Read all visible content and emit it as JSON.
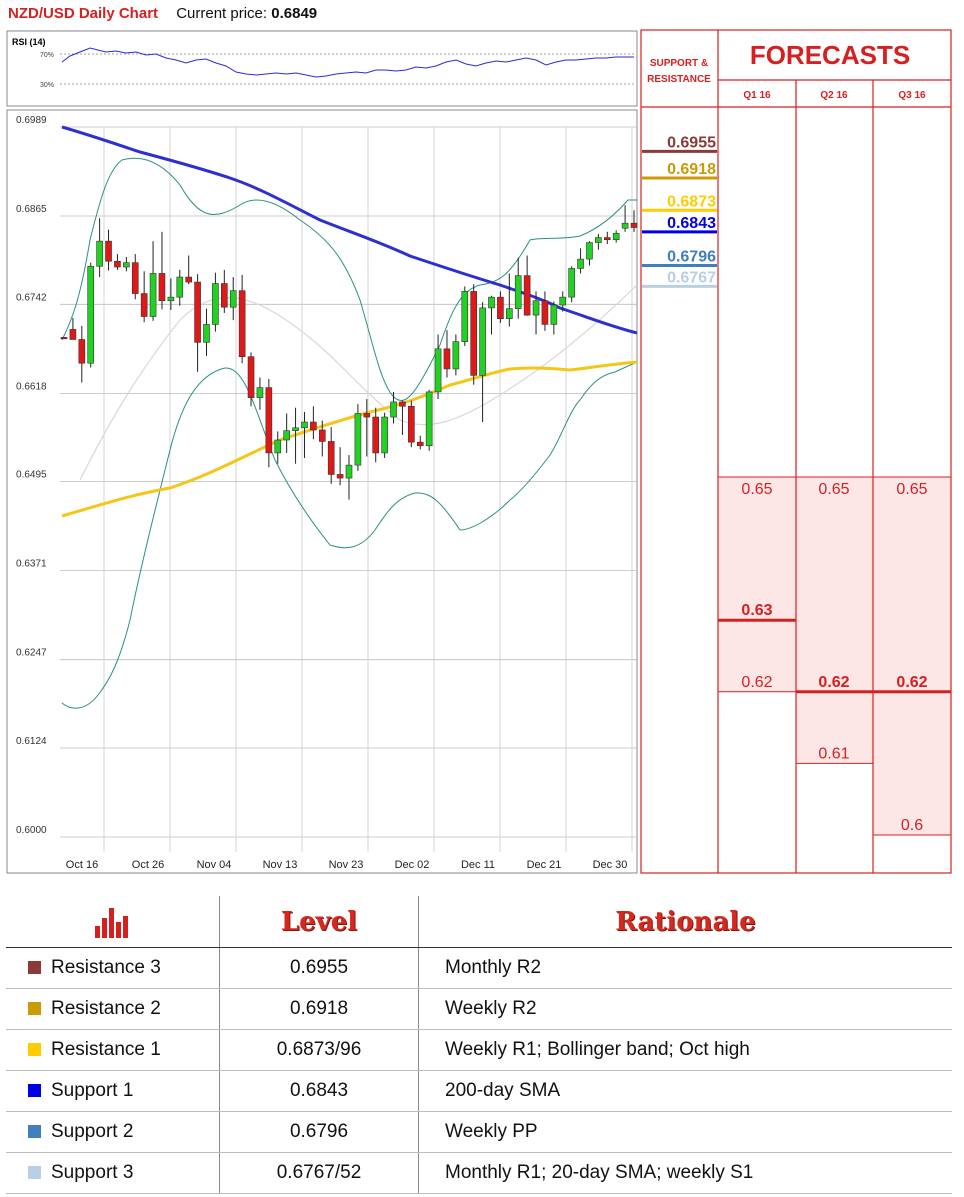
{
  "header": {
    "title": "NZD/USD Daily Chart",
    "price_label": "Current price:",
    "price_value": "0.6849"
  },
  "colors": {
    "red": "#d62020",
    "r3": "#8b3a3a",
    "r2": "#cc9a06",
    "r1": "#ffcc00",
    "s1": "#0000e6",
    "s2": "#3f7fbf",
    "s3": "#b8cfe6",
    "sma200": "#2d2fd3",
    "sma_yellow": "#f5c518",
    "bollinger": "#2a8f86",
    "sma20": "#d8d8d8",
    "bull": "#23d123",
    "bear": "#e01818",
    "forecast_fill": "#fde6e6"
  },
  "chart_data": [
    {
      "type": "candlestick",
      "title": "NZD/USD Daily Chart",
      "y_ticks": [
        "0.6989",
        "0.6865",
        "0.6742",
        "0.6618",
        "0.6495",
        "0.6371",
        "0.6247",
        "0.6124",
        "0.6000"
      ],
      "x_ticks": [
        "Oct 16",
        "Oct 26",
        "Nov 04",
        "Nov 13",
        "Nov 23",
        "Dec 02",
        "Dec 11",
        "Dec 21",
        "Dec 30"
      ],
      "ylim": [
        0.6,
        0.6989
      ],
      "rsi_label": "RSI (14)",
      "rsi_levels": [
        "70%",
        "30%"
      ],
      "candles": [
        [
          0.6696,
          0.6696,
          0.6696,
          0.6694
        ],
        [
          0.6707,
          0.6723,
          0.6693,
          0.6693
        ],
        [
          0.6693,
          0.6712,
          0.6633,
          0.666
        ],
        [
          0.666,
          0.68,
          0.6654,
          0.6795
        ],
        [
          0.6795,
          0.6862,
          0.678,
          0.683
        ],
        [
          0.683,
          0.6846,
          0.6789,
          0.6802
        ],
        [
          0.6802,
          0.6812,
          0.679,
          0.6794
        ],
        [
          0.6794,
          0.6808,
          0.6788,
          0.68
        ],
        [
          0.68,
          0.6812,
          0.6749,
          0.6757
        ],
        [
          0.6757,
          0.6788,
          0.6717,
          0.6725
        ],
        [
          0.6725,
          0.683,
          0.6719,
          0.6785
        ],
        [
          0.6785,
          0.6843,
          0.6735,
          0.6747
        ],
        [
          0.6747,
          0.6778,
          0.6734,
          0.6752
        ],
        [
          0.6752,
          0.679,
          0.674,
          0.678
        ],
        [
          0.678,
          0.681,
          0.677,
          0.6773
        ],
        [
          0.6773,
          0.6784,
          0.6648,
          0.6689
        ],
        [
          0.6689,
          0.6736,
          0.667,
          0.6714
        ],
        [
          0.6714,
          0.6786,
          0.6704,
          0.6771
        ],
        [
          0.6771,
          0.679,
          0.673,
          0.6738
        ],
        [
          0.6738,
          0.678,
          0.672,
          0.6761
        ],
        [
          0.6761,
          0.6783,
          0.666,
          0.6669
        ],
        [
          0.6669,
          0.6675,
          0.66,
          0.6612
        ],
        [
          0.6612,
          0.664,
          0.6595,
          0.6626
        ],
        [
          0.6626,
          0.6638,
          0.6515,
          0.6535
        ],
        [
          0.6535,
          0.6565,
          0.652,
          0.6553
        ],
        [
          0.6553,
          0.659,
          0.6535,
          0.6566
        ],
        [
          0.6566,
          0.6598,
          0.652,
          0.657
        ],
        [
          0.657,
          0.6592,
          0.6528,
          0.6578
        ],
        [
          0.6578,
          0.66,
          0.6554,
          0.6567
        ],
        [
          0.6567,
          0.658,
          0.653,
          0.6551
        ],
        [
          0.6551,
          0.6571,
          0.6492,
          0.6505
        ],
        [
          0.6505,
          0.6543,
          0.649,
          0.65
        ],
        [
          0.65,
          0.6532,
          0.647,
          0.6518
        ],
        [
          0.6518,
          0.6603,
          0.651,
          0.659
        ],
        [
          0.659,
          0.661,
          0.653,
          0.6585
        ],
        [
          0.6585,
          0.6598,
          0.6522,
          0.6535
        ],
        [
          0.6535,
          0.6591,
          0.6528,
          0.6585
        ],
        [
          0.6585,
          0.662,
          0.6576,
          0.6606
        ],
        [
          0.6606,
          0.6608,
          0.656,
          0.66
        ],
        [
          0.66,
          0.6608,
          0.6543,
          0.655
        ],
        [
          0.655,
          0.6559,
          0.654,
          0.6545
        ],
        [
          0.6545,
          0.6623,
          0.6538,
          0.662
        ],
        [
          0.662,
          0.67,
          0.661,
          0.668
        ],
        [
          0.668,
          0.6706,
          0.664,
          0.6652
        ],
        [
          0.6652,
          0.67,
          0.6643,
          0.669
        ],
        [
          0.669,
          0.6767,
          0.6684,
          0.676
        ],
        [
          0.676,
          0.677,
          0.663,
          0.6643
        ],
        [
          0.6643,
          0.6745,
          0.6578,
          0.6737
        ],
        [
          0.6737,
          0.6754,
          0.67,
          0.6752
        ],
        [
          0.6752,
          0.676,
          0.6716,
          0.6722
        ],
        [
          0.6722,
          0.6785,
          0.6711,
          0.6736
        ],
        [
          0.6736,
          0.6807,
          0.6722,
          0.6782
        ],
        [
          0.6782,
          0.681,
          0.6726,
          0.6727
        ],
        [
          0.6727,
          0.676,
          0.67,
          0.6747
        ],
        [
          0.6747,
          0.676,
          0.6705,
          0.6714
        ],
        [
          0.6714,
          0.6746,
          0.67,
          0.6741
        ],
        [
          0.6741,
          0.676,
          0.6732,
          0.6752
        ],
        [
          0.6752,
          0.6795,
          0.6745,
          0.6792
        ],
        [
          0.6792,
          0.682,
          0.6785,
          0.6805
        ],
        [
          0.6805,
          0.683,
          0.6796,
          0.6828
        ],
        [
          0.6828,
          0.684,
          0.6818,
          0.6835
        ],
        [
          0.6835,
          0.6843,
          0.6826,
          0.6832
        ],
        [
          0.6832,
          0.6845,
          0.6828,
          0.6841
        ],
        [
          0.6848,
          0.688,
          0.6843,
          0.6855
        ],
        [
          0.6855,
          0.6873,
          0.6843,
          0.6849
        ]
      ]
    },
    {
      "type": "table",
      "name": "forecasts",
      "support_resistance_label": "SUPPORT & RESISTANCE",
      "title": "FORECASTS",
      "columns": [
        "Q1 16",
        "Q2 16",
        "Q3 16"
      ],
      "sr_levels": [
        {
          "value": "0.6955",
          "key": "r3"
        },
        {
          "value": "0.6918",
          "key": "r2"
        },
        {
          "value": "0.6873",
          "key": "r1"
        },
        {
          "value": "0.6843",
          "key": "s1"
        },
        {
          "value": "0.6796",
          "key": "s2"
        },
        {
          "value": "0.6767",
          "key": "s3"
        }
      ],
      "forecast_cells": [
        {
          "col": 0,
          "label": "0.65",
          "value": 0.65,
          "bold": false
        },
        {
          "col": 0,
          "label": "0.63",
          "value": 0.63,
          "bold": true
        },
        {
          "col": 0,
          "label": "0.62",
          "value": 0.62,
          "bold": false
        },
        {
          "col": 1,
          "label": "0.65",
          "value": 0.65,
          "bold": false
        },
        {
          "col": 1,
          "label": "0.62",
          "value": 0.62,
          "bold": true
        },
        {
          "col": 1,
          "label": "0.61",
          "value": 0.61,
          "bold": false
        },
        {
          "col": 2,
          "label": "0.65",
          "value": 0.65,
          "bold": false
        },
        {
          "col": 2,
          "label": "0.62",
          "value": 0.62,
          "bold": true
        },
        {
          "col": 2,
          "label": "0.6",
          "value": 0.6,
          "bold": false
        }
      ]
    }
  ],
  "levels_table": {
    "icon": "bar-chart-icon",
    "header_level": "Level",
    "header_rationale": "Rationale",
    "rows": [
      {
        "name": "Resistance 3",
        "level": "0.6955",
        "rationale": "Monthly R2",
        "color": "#8b3a3a"
      },
      {
        "name": "Resistance 2",
        "level": "0.6918",
        "rationale": "Weekly R2",
        "color": "#cc9a06"
      },
      {
        "name": "Resistance 1",
        "level": "0.6873/96",
        "rationale": "Weekly R1; Bollinger band; Oct high",
        "color": "#ffcc00"
      },
      {
        "name": "Support 1",
        "level": "0.6843",
        "rationale": "200-day SMA",
        "color": "#0000e6"
      },
      {
        "name": "Support 2",
        "level": "0.6796",
        "rationale": "Weekly PP",
        "color": "#3f7fbf"
      },
      {
        "name": "Support 3",
        "level": "0.6767/52",
        "rationale": "Monthly R1; 20-day SMA; weekly S1",
        "color": "#b8cfe6"
      }
    ]
  }
}
